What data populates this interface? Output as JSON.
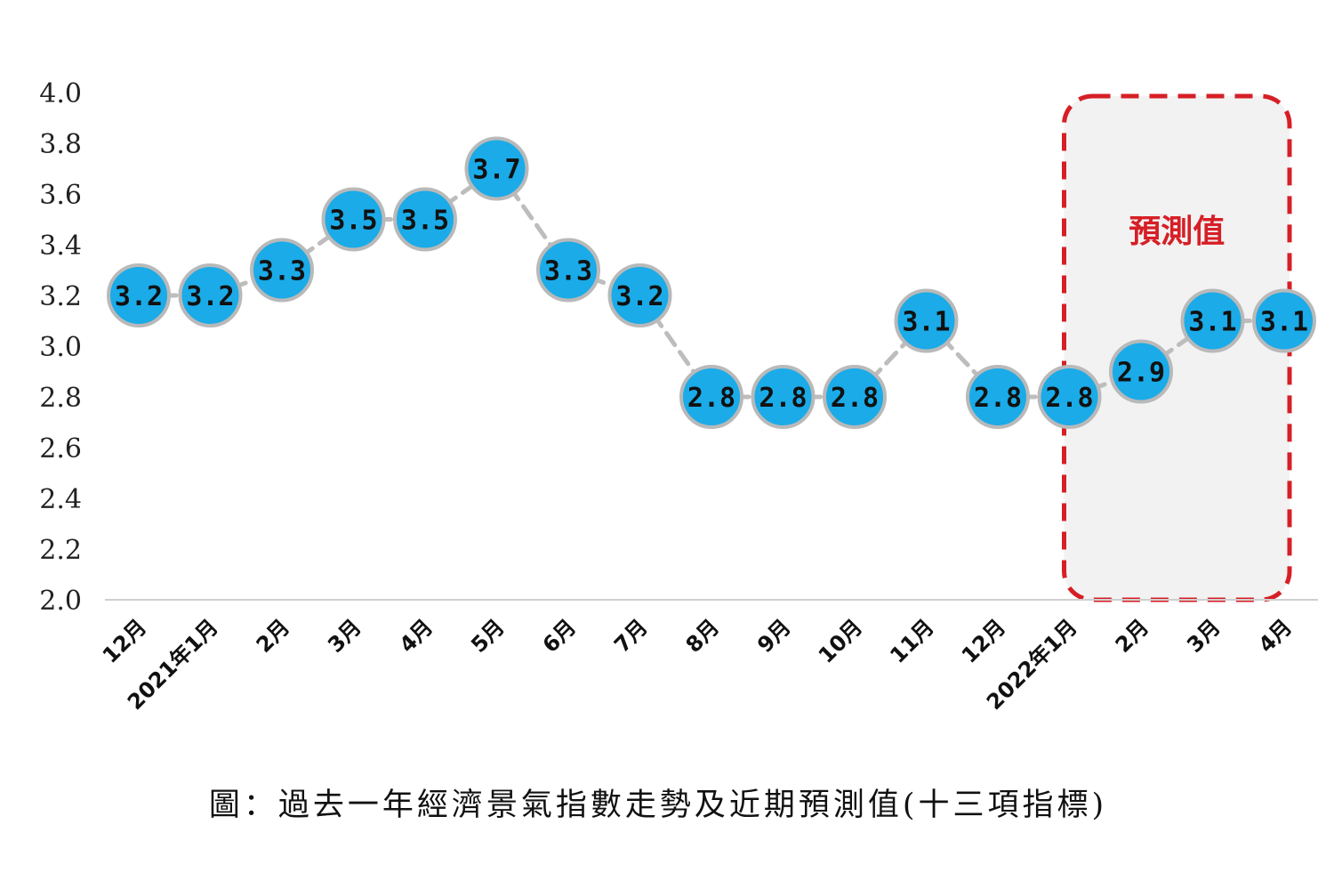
{
  "chart_data": {
    "type": "line",
    "categories": [
      "12月",
      "2021年1月",
      "2月",
      "3月",
      "4月",
      "5月",
      "6月",
      "7月",
      "8月",
      "9月",
      "10月",
      "11月",
      "12月",
      "2022年1月",
      "2月",
      "3月",
      "4月"
    ],
    "series": [
      {
        "values": [
          3.2,
          3.2,
          3.3,
          3.5,
          3.5,
          3.7,
          3.3,
          3.2,
          2.8,
          2.8,
          2.8,
          3.1,
          2.8,
          2.8,
          2.9,
          3.1,
          3.1
        ],
        "data_labels": [
          "3.2",
          "3.2",
          "3.3",
          "3.5",
          "3.5",
          "3.7",
          "3.3",
          "3.2",
          "2.8",
          "2.8",
          "2.8",
          "3.1",
          "2.8",
          "2.8",
          "2.9",
          "3.1",
          "3.1"
        ]
      }
    ],
    "yticks": [
      "4.0",
      "3.8",
      "3.6",
      "3.4",
      "3.2",
      "3.0",
      "2.8",
      "2.6",
      "2.4",
      "2.2",
      "2.0"
    ],
    "ylim": [
      2.0,
      4.0
    ],
    "grid": false,
    "forecast_region": {
      "label": "預測值",
      "from_category_index": 13,
      "to_category_index": 16
    },
    "caption": "圖：過去一年經濟景氣指數走勢及近期預測值(十三項指標)",
    "colors": {
      "marker_fill": "#1aabe8",
      "marker_stroke": "#b9b9b9",
      "connector": "#bdbdbd",
      "forecast_border": "#d61f26",
      "forecast_fill": "#f2f2f2",
      "axis": "#cfcfcf"
    }
  }
}
